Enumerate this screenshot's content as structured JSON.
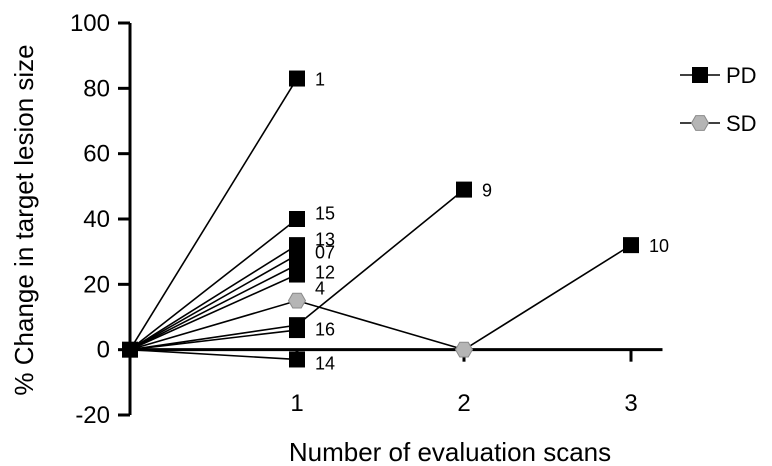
{
  "chart_data": {
    "type": "line",
    "title": "",
    "xlabel": "Number of evaluation scans",
    "ylabel": "% Change in target lesion size",
    "xlim": [
      0,
      3.5
    ],
    "ylim": [
      -20,
      100
    ],
    "x_ticks": [
      1,
      2,
      3
    ],
    "x_tick_labels": [
      "1",
      "2",
      "3"
    ],
    "y_ticks": [
      -20,
      0,
      20,
      40,
      60,
      80,
      100
    ],
    "y_tick_labels": [
      "-20",
      "0",
      "20",
      "40",
      "60",
      "80",
      "100"
    ],
    "grid": false,
    "legend": {
      "position": "top-right",
      "entries": [
        {
          "label": "PD",
          "marker": "square",
          "color": "#000000"
        },
        {
          "label": "SD",
          "marker": "hexagon",
          "color": "#b5b5b5"
        }
      ]
    },
    "series": [
      {
        "id": "1",
        "group": "PD",
        "points": [
          [
            0,
            0
          ],
          [
            1,
            83
          ]
        ]
      },
      {
        "id": "15",
        "group": "PD",
        "points": [
          [
            0,
            0
          ],
          [
            1,
            40
          ]
        ]
      },
      {
        "id": "13",
        "group": "PD",
        "points": [
          [
            0,
            0
          ],
          [
            1,
            32
          ]
        ]
      },
      {
        "id": "07",
        "group": "PD",
        "points": [
          [
            0,
            0
          ],
          [
            1,
            29
          ]
        ]
      },
      {
        "id": "12",
        "group": "PD",
        "points": [
          [
            0,
            0
          ],
          [
            1,
            26
          ]
        ]
      },
      {
        "id": "4",
        "group": "PD",
        "points": [
          [
            0,
            0
          ],
          [
            1,
            23
          ]
        ]
      },
      {
        "id": "16",
        "group": "PD",
        "points": [
          [
            0,
            0
          ],
          [
            1,
            6
          ]
        ]
      },
      {
        "id": "14",
        "group": "PD",
        "points": [
          [
            0,
            0
          ],
          [
            1,
            -3
          ]
        ]
      },
      {
        "id": "9",
        "group": "PD",
        "points": [
          [
            0,
            0
          ],
          [
            1,
            7.5
          ],
          [
            2,
            49
          ]
        ]
      },
      {
        "id": "10",
        "group": "PD",
        "points": [
          [
            0,
            0
          ],
          [
            1,
            15
          ],
          [
            2,
            0
          ],
          [
            3,
            32
          ]
        ],
        "point_groups": [
          "PD",
          "SD",
          "SD",
          "PD"
        ]
      }
    ],
    "point_labels": [
      {
        "text": "1",
        "x": 1,
        "y": 83
      },
      {
        "text": "15",
        "x": 1,
        "y": 42
      },
      {
        "text": "13",
        "x": 1,
        "y": 34
      },
      {
        "text": "07",
        "x": 1,
        "y": 30
      },
      {
        "text": "12",
        "x": 1,
        "y": 24
      },
      {
        "text": "4",
        "x": 1,
        "y": 19
      },
      {
        "text": "16",
        "x": 1,
        "y": 6.5
      },
      {
        "text": "14",
        "x": 1,
        "y": -4
      },
      {
        "text": "9",
        "x": 2,
        "y": 49
      },
      {
        "text": "10",
        "x": 3,
        "y": 32
      }
    ]
  }
}
